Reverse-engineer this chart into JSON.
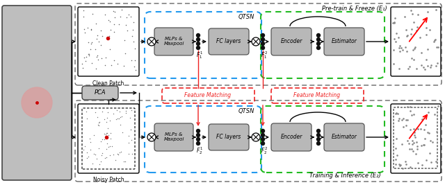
{
  "top_label": "Pre-train & Freeze (E₁)",
  "bottom_label": "Training & Inference (E₂)",
  "clean_patch_label": "Clean Patch",
  "noisy_patch_label": "Noisy Patch",
  "feature_matching": "Feature Matching",
  "qtsn": "QTSN",
  "mlp_maxpool": "MLPs &\nMaxpool",
  "fc_layers": "FC layers",
  "encoder": "Encoder",
  "estimator": "Estimator",
  "pca": "PCA",
  "blue_dashed": "#2299ee",
  "green_dashed": "#22bb22",
  "red_dashed": "#ee2222",
  "gray_box": "#aaaaaa",
  "box_face": "#c0c0c0",
  "white": "#ffffff",
  "black": "#000000",
  "dark_gray_region": "#888888"
}
